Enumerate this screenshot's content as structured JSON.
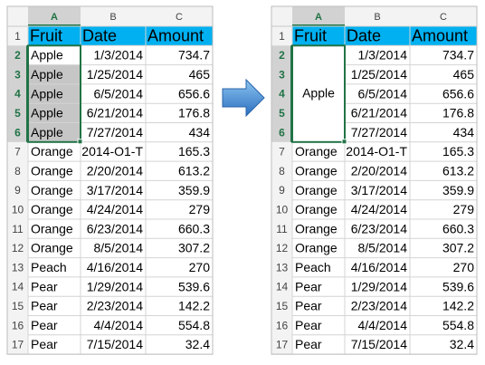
{
  "left": {
    "column_headers": [
      "A",
      "B",
      "C"
    ],
    "row_numbers": [
      1,
      2,
      3,
      4,
      5,
      6,
      7,
      8,
      9,
      10,
      11,
      12,
      13,
      14,
      15,
      16,
      17
    ],
    "header": [
      "Fruit",
      "Date",
      "Amount"
    ],
    "rows": [
      {
        "fruit": "Apple",
        "date": "1/3/2014",
        "amount": 734.7
      },
      {
        "fruit": "Apple",
        "date": "1/25/2014",
        "amount": 465
      },
      {
        "fruit": "Apple",
        "date": "6/5/2014",
        "amount": 656.6
      },
      {
        "fruit": "Apple",
        "date": "6/21/2014",
        "amount": 176.8
      },
      {
        "fruit": "Apple",
        "date": "7/27/2014",
        "amount": 434
      },
      {
        "fruit": "Orange",
        "date": "2014-O1-T",
        "amount": 165.3
      },
      {
        "fruit": "Orange",
        "date": "2/20/2014",
        "amount": 613.2
      },
      {
        "fruit": "Orange",
        "date": "3/17/2014",
        "amount": 359.9
      },
      {
        "fruit": "Orange",
        "date": "4/24/2014",
        "amount": 279
      },
      {
        "fruit": "Orange",
        "date": "6/23/2014",
        "amount": 660.3
      },
      {
        "fruit": "Orange",
        "date": "8/5/2014",
        "amount": 307.2
      },
      {
        "fruit": "Peach",
        "date": "4/16/2014",
        "amount": 270
      },
      {
        "fruit": "Pear",
        "date": "1/29/2014",
        "amount": 539.6
      },
      {
        "fruit": "Pear",
        "date": "2/23/2014",
        "amount": 142.2
      },
      {
        "fruit": "Pear",
        "date": "4/4/2014",
        "amount": 554.8
      },
      {
        "fruit": "Pear",
        "date": "7/15/2014",
        "amount": 32.4
      }
    ]
  },
  "right": {
    "column_headers": [
      "A",
      "B",
      "C"
    ],
    "row_numbers": [
      1,
      2,
      3,
      4,
      5,
      6,
      7,
      8,
      9,
      10,
      11,
      12,
      13,
      14,
      15,
      16,
      17
    ],
    "header": [
      "Fruit",
      "Date",
      "Amount"
    ],
    "merged_fruit": "Apple",
    "rows": [
      {
        "date": "1/3/2014",
        "amount": 734.7
      },
      {
        "date": "1/25/2014",
        "amount": 465
      },
      {
        "date": "6/5/2014",
        "amount": 656.6
      },
      {
        "date": "6/21/2014",
        "amount": 176.8
      },
      {
        "date": "7/27/2014",
        "amount": 434
      },
      {
        "fruit": "Orange",
        "date": "2014-O1-T",
        "amount": 165.3
      },
      {
        "fruit": "Orange",
        "date": "2/20/2014",
        "amount": 613.2
      },
      {
        "fruit": "Orange",
        "date": "3/17/2014",
        "amount": 359.9
      },
      {
        "fruit": "Orange",
        "date": "4/24/2014",
        "amount": 279
      },
      {
        "fruit": "Orange",
        "date": "6/23/2014",
        "amount": 660.3
      },
      {
        "fruit": "Orange",
        "date": "8/5/2014",
        "amount": 307.2
      },
      {
        "fruit": "Peach",
        "date": "4/16/2014",
        "amount": 270
      },
      {
        "fruit": "Pear",
        "date": "1/29/2014",
        "amount": 539.6
      },
      {
        "fruit": "Pear",
        "date": "2/23/2014",
        "amount": 142.2
      },
      {
        "fruit": "Pear",
        "date": "4/4/2014",
        "amount": 554.8
      },
      {
        "fruit": "Pear",
        "date": "7/15/2014",
        "amount": 32.4
      }
    ]
  }
}
